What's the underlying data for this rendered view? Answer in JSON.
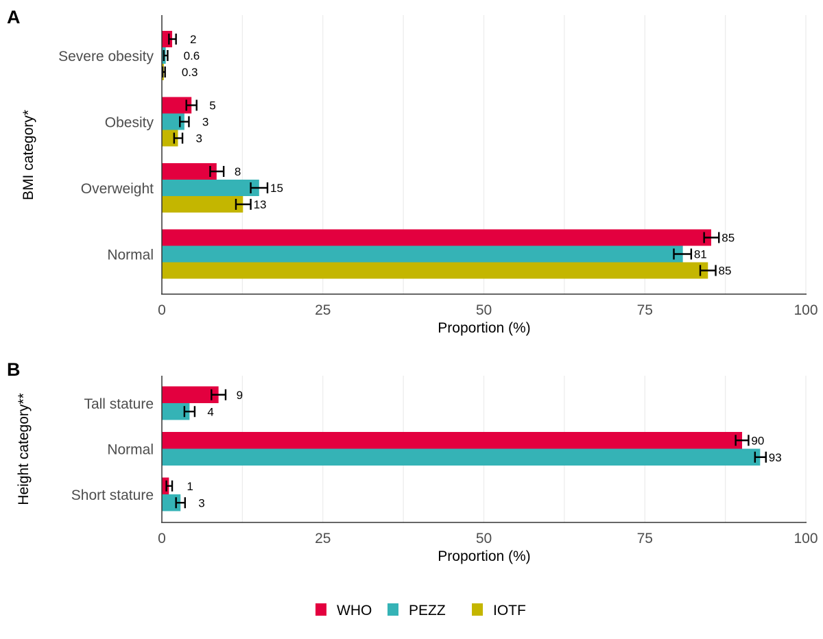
{
  "legend": {
    "items": [
      {
        "label": "WHO",
        "color": "#E3003F"
      },
      {
        "label": "PEZZ",
        "color": "#35B3B6"
      },
      {
        "label": "IOTF",
        "color": "#C4B600"
      }
    ],
    "position": "bottom-center"
  },
  "chart_data": [
    {
      "type": "bar",
      "orientation": "horizontal",
      "panel_label": "A",
      "title": "",
      "xlabel": "Proportion (%)",
      "ylabel": "BMI category*",
      "xlim": [
        0,
        100
      ],
      "xticks": [
        0,
        25,
        50,
        75,
        100
      ],
      "x_tick_labels": [
        "0",
        "25",
        "50",
        "75",
        "100"
      ],
      "grid": true,
      "categories": [
        "Severe obesity",
        "Obesity",
        "Overweight",
        "Normal"
      ],
      "series": [
        {
          "name": "WHO",
          "color": "#E3003F",
          "values": [
            1.6,
            4.6,
            8.5,
            85.3
          ],
          "ci_low": [
            1.1,
            3.8,
            7.5,
            84.2
          ],
          "ci_high": [
            2.2,
            5.4,
            9.6,
            86.5
          ],
          "labels": [
            "2",
            "5",
            "8",
            "85"
          ]
        },
        {
          "name": "PEZZ",
          "color": "#35B3B6",
          "values": [
            0.6,
            3.5,
            15.1,
            80.9
          ],
          "ci_low": [
            0.3,
            2.8,
            13.8,
            79.5
          ],
          "ci_high": [
            0.9,
            4.2,
            16.4,
            82.2
          ],
          "labels": [
            "0.6",
            "3",
            "15",
            "81"
          ]
        },
        {
          "name": "IOTF",
          "color": "#C4B600",
          "values": [
            0.3,
            2.5,
            12.6,
            84.8
          ],
          "ci_low": [
            0.1,
            1.9,
            11.5,
            83.6
          ],
          "ci_high": [
            0.5,
            3.2,
            13.8,
            86.0
          ],
          "labels": [
            "0.3",
            "3",
            "13",
            "85"
          ]
        }
      ]
    },
    {
      "type": "bar",
      "orientation": "horizontal",
      "panel_label": "B",
      "title": "",
      "xlabel": "Proportion (%)",
      "ylabel": "Height category**",
      "xlim": [
        0,
        100
      ],
      "xticks": [
        0,
        25,
        50,
        75,
        100
      ],
      "x_tick_labels": [
        "0",
        "25",
        "50",
        "75",
        "100"
      ],
      "grid": true,
      "categories": [
        "Tall stature",
        "Normal",
        "Short stature"
      ],
      "series": [
        {
          "name": "WHO",
          "color": "#E3003F",
          "values": [
            8.8,
            90.1,
            1.1
          ],
          "ci_low": [
            7.7,
            89.1,
            0.7
          ],
          "ci_high": [
            9.9,
            91.1,
            1.6
          ],
          "labels": [
            "9",
            "90",
            "1"
          ]
        },
        {
          "name": "PEZZ",
          "color": "#35B3B6",
          "values": [
            4.3,
            92.9,
            2.9
          ],
          "ci_low": [
            3.5,
            92.1,
            2.2
          ],
          "ci_high": [
            5.1,
            93.8,
            3.6
          ],
          "labels": [
            "4",
            "93",
            "3"
          ]
        }
      ]
    }
  ]
}
